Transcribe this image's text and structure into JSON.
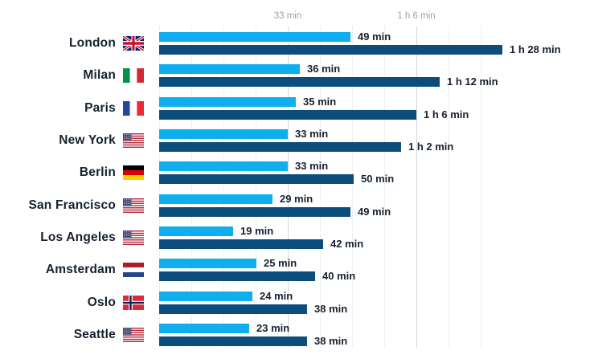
{
  "chart_data": {
    "type": "bar",
    "orientation": "horizontal",
    "unit": "minutes",
    "title": "",
    "legend": null,
    "grid": {
      "minor_step_minutes": 8.25,
      "max_minutes": 82.5,
      "dotted": true
    },
    "axis_ticks": [
      {
        "minutes": 33,
        "label": "33 min"
      },
      {
        "minutes": 66,
        "label": "1 h 6 min"
      }
    ],
    "colors": {
      "series1": "#0EAEEF",
      "series2": "#0D4D7E",
      "label_text": "#17202e",
      "axis_text": "#9aa0a8"
    },
    "rows": [
      {
        "city": "London",
        "flag": "united-kingdom",
        "series1_minutes": 49,
        "series1_label": "49 min",
        "series2_minutes": 88,
        "series2_label": "1 h 28 min"
      },
      {
        "city": "Milan",
        "flag": "italy",
        "series1_minutes": 36,
        "series1_label": "36 min",
        "series2_minutes": 72,
        "series2_label": "1 h 12 min"
      },
      {
        "city": "Paris",
        "flag": "france",
        "series1_minutes": 35,
        "series1_label": "35 min",
        "series2_minutes": 66,
        "series2_label": "1 h 6 min"
      },
      {
        "city": "New York",
        "flag": "united-states",
        "series1_minutes": 33,
        "series1_label": "33 min",
        "series2_minutes": 62,
        "series2_label": "1 h 2 min"
      },
      {
        "city": "Berlin",
        "flag": "germany",
        "series1_minutes": 33,
        "series1_label": "33 min",
        "series2_minutes": 50,
        "series2_label": "50 min"
      },
      {
        "city": "San Francisco",
        "flag": "united-states",
        "series1_minutes": 29,
        "series1_label": "29 min",
        "series2_minutes": 49,
        "series2_label": "49 min"
      },
      {
        "city": "Los Angeles",
        "flag": "united-states",
        "series1_minutes": 19,
        "series1_label": "19 min",
        "series2_minutes": 42,
        "series2_label": "42 min"
      },
      {
        "city": "Amsterdam",
        "flag": "netherlands",
        "series1_minutes": 25,
        "series1_label": "25 min",
        "series2_minutes": 40,
        "series2_label": "40 min"
      },
      {
        "city": "Oslo",
        "flag": "norway",
        "series1_minutes": 24,
        "series1_label": "24 min",
        "series2_minutes": 38,
        "series2_label": "38 min"
      },
      {
        "city": "Seattle",
        "flag": "united-states",
        "series1_minutes": 23,
        "series1_label": "23 min",
        "series2_minutes": 38,
        "series2_label": "38 min"
      }
    ]
  }
}
